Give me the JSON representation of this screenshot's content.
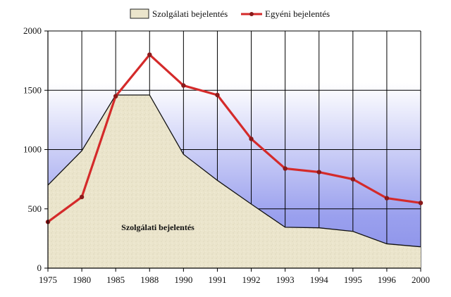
{
  "chart_data": {
    "type": "area",
    "categories": [
      "1975",
      "1980",
      "1985",
      "1988",
      "1990",
      "1991",
      "1992",
      "1993",
      "1994",
      "1995",
      "1996",
      "2000"
    ],
    "series": [
      {
        "name": "Szolgálati bejelentés",
        "kind": "area",
        "values": [
          700,
          990,
          1460,
          1460,
          960,
          740,
          540,
          345,
          340,
          310,
          205,
          180
        ],
        "color": "#e8e2c8"
      },
      {
        "name": "Egyéni bejelentés",
        "kind": "line",
        "values": [
          390,
          600,
          1450,
          1800,
          1540,
          1460,
          1090,
          840,
          810,
          750,
          590,
          550
        ],
        "color": "#d42a2a"
      }
    ],
    "ylim": [
      0,
      2000
    ],
    "yticks": [
      0,
      500,
      1000,
      1500,
      2000
    ],
    "grid": true,
    "legend_position": "top",
    "area_annotation": "Szolgálati bejelentés",
    "background_gradient": [
      "#ffffff",
      "#9aa0ee"
    ]
  }
}
